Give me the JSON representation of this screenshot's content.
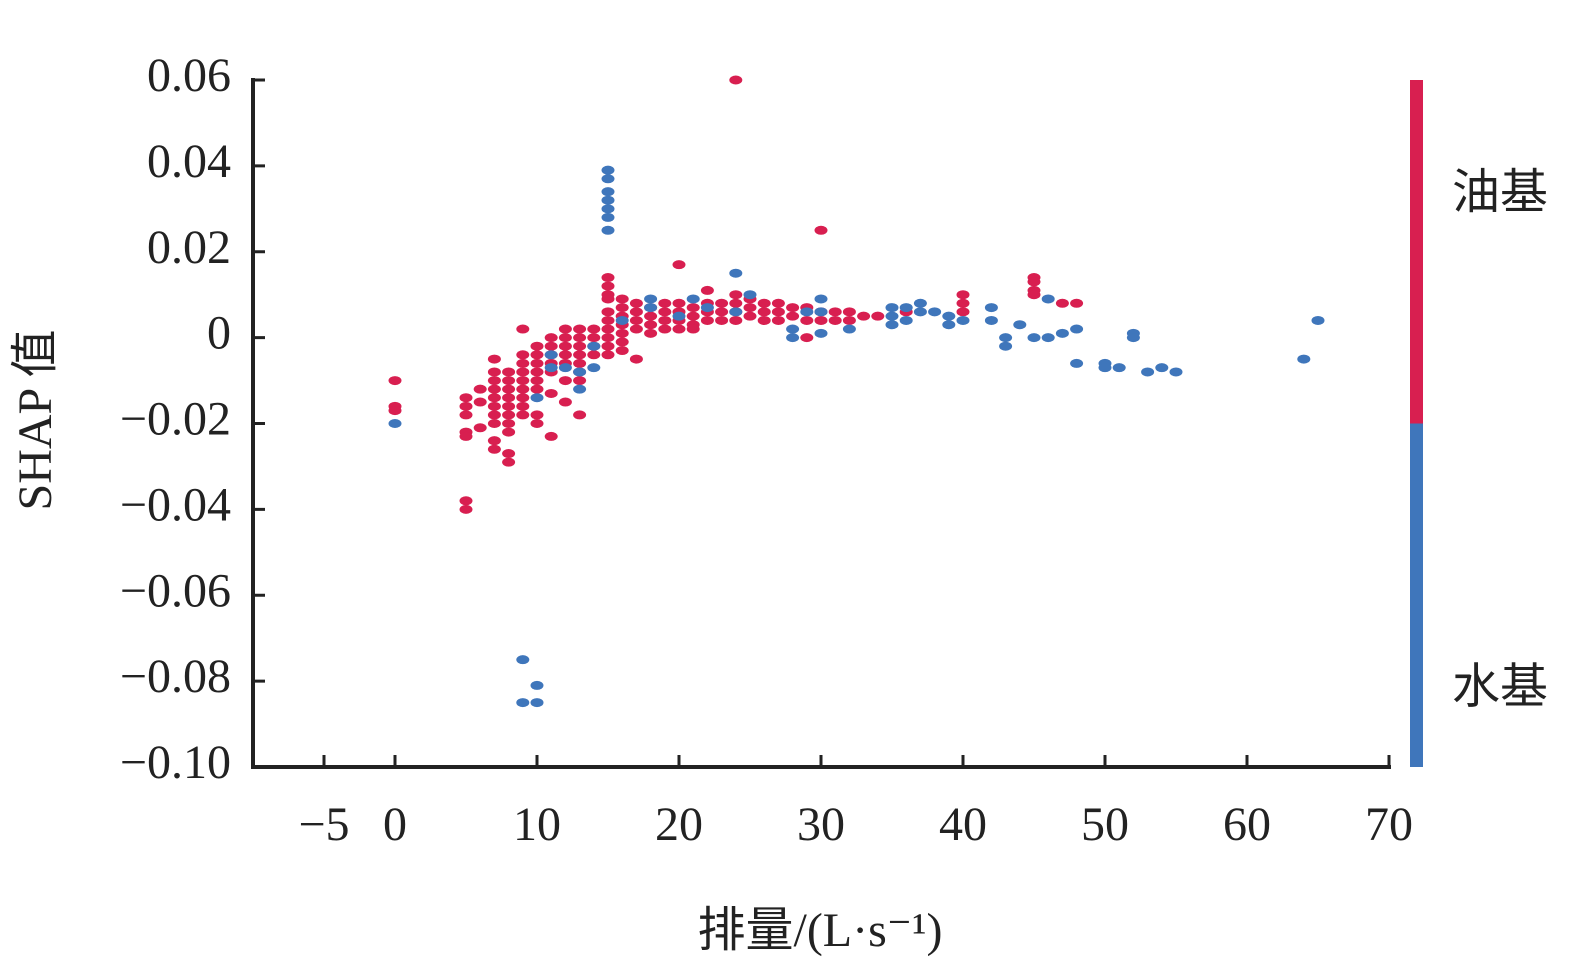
{
  "chart_data": {
    "type": "scatter",
    "x_label": "排量/(L·s⁻¹)",
    "y_label": "SHAP 值",
    "xlim": [
      -10,
      70
    ],
    "xticks": [
      {
        "value": -5,
        "label": "−5"
      },
      0,
      10,
      20,
      30,
      40,
      50,
      60,
      70
    ],
    "ylim": [
      -0.1,
      0.06
    ],
    "yticks": [
      0.06,
      0.04,
      0.02,
      0,
      {
        "value": -0.02,
        "label": "−0.02"
      },
      {
        "value": -0.04,
        "label": "−0.04"
      },
      {
        "value": -0.06,
        "label": "−0.06"
      },
      {
        "value": -0.08,
        "label": "−0.08"
      },
      {
        "value": -0.1,
        "label": "−0.10"
      }
    ],
    "grid": false,
    "legend": "colorbar-right",
    "series": [
      {
        "name": "油基",
        "color": "#d81f50",
        "x": [
          0,
          0,
          0,
          5,
          5,
          5,
          5,
          5,
          5,
          5,
          6,
          6,
          6,
          7,
          7,
          7,
          7,
          7,
          7,
          7,
          7,
          7,
          7,
          8,
          8,
          8,
          8,
          8,
          8,
          8,
          8,
          8,
          8,
          9,
          9,
          9,
          9,
          9,
          9,
          9,
          9,
          9,
          10,
          10,
          10,
          10,
          10,
          10,
          10,
          10,
          11,
          11,
          11,
          11,
          11,
          11,
          11,
          12,
          12,
          12,
          12,
          12,
          12,
          12,
          13,
          13,
          13,
          13,
          13,
          13,
          13,
          13,
          14,
          14,
          14,
          14,
          15,
          15,
          15,
          15,
          15,
          15,
          15,
          15,
          15,
          15,
          16,
          16,
          16,
          16,
          16,
          16,
          16,
          17,
          17,
          17,
          17,
          17,
          18,
          18,
          18,
          18,
          19,
          19,
          19,
          19,
          20,
          20,
          20,
          20,
          20,
          21,
          21,
          21,
          21,
          22,
          22,
          22,
          22,
          23,
          23,
          23,
          24,
          24,
          24,
          24,
          24,
          25,
          25,
          25,
          26,
          26,
          26,
          27,
          27,
          27,
          28,
          28,
          29,
          29,
          29,
          30,
          30,
          30,
          31,
          31,
          32,
          32,
          33,
          34,
          36,
          40,
          40,
          40,
          45,
          45,
          45,
          45,
          47,
          48
        ],
        "values": [
          -0.01,
          -0.016,
          -0.017,
          -0.014,
          -0.016,
          -0.018,
          -0.022,
          -0.023,
          -0.038,
          -0.04,
          -0.012,
          -0.015,
          -0.021,
          -0.005,
          -0.008,
          -0.01,
          -0.012,
          -0.014,
          -0.016,
          -0.018,
          -0.02,
          -0.024,
          -0.026,
          -0.008,
          -0.01,
          -0.012,
          -0.014,
          -0.016,
          -0.018,
          -0.02,
          -0.022,
          -0.027,
          -0.029,
          0.002,
          -0.004,
          -0.006,
          -0.008,
          -0.01,
          -0.012,
          -0.014,
          -0.016,
          -0.018,
          -0.002,
          -0.004,
          -0.006,
          -0.008,
          -0.01,
          -0.012,
          -0.018,
          -0.02,
          0,
          -0.002,
          -0.004,
          -0.006,
          -0.008,
          -0.013,
          -0.023,
          0.002,
          0,
          -0.002,
          -0.004,
          -0.006,
          -0.01,
          -0.015,
          0.002,
          0,
          -0.002,
          -0.004,
          -0.006,
          -0.008,
          -0.01,
          -0.018,
          0.002,
          0,
          -0.002,
          -0.004,
          0.014,
          0.012,
          0.01,
          0.009,
          0.006,
          0.004,
          0.002,
          0,
          -0.002,
          -0.004,
          0.009,
          0.007,
          0.005,
          0.003,
          0.001,
          -0.001,
          -0.003,
          0.008,
          0.006,
          0.004,
          0.002,
          -0.005,
          0.007,
          0.005,
          0.003,
          0.001,
          0.008,
          0.006,
          0.004,
          0.002,
          0.017,
          0.008,
          0.006,
          0.004,
          0.002,
          0.007,
          0.005,
          0.003,
          0.002,
          0.011,
          0.008,
          0.006,
          0.004,
          0.008,
          0.006,
          0.004,
          0.06,
          0.01,
          0.008,
          0.006,
          0.004,
          0.009,
          0.007,
          0.005,
          0.008,
          0.006,
          0.004,
          0.008,
          0.006,
          0.004,
          0.007,
          0.005,
          0.007,
          0.004,
          0,
          0.025,
          0.006,
          0.004,
          0.006,
          0.004,
          0.006,
          0.004,
          0.005,
          0.005,
          0.006,
          0.01,
          0.008,
          0.006,
          0.014,
          0.013,
          0.011,
          0.01,
          0.008,
          0.008
        ]
      },
      {
        "name": "水基",
        "color": "#3f76bb",
        "x": [
          0,
          9,
          9,
          10,
          10,
          10,
          11,
          11,
          12,
          13,
          13,
          14,
          14,
          15,
          15,
          15,
          15,
          15,
          15,
          15,
          16,
          18,
          18,
          20,
          21,
          22,
          24,
          24,
          25,
          28,
          28,
          29,
          30,
          30,
          30,
          32,
          35,
          35,
          35,
          36,
          36,
          37,
          37,
          38,
          39,
          39,
          40,
          42,
          42,
          43,
          43,
          44,
          45,
          46,
          46,
          47,
          48,
          48,
          50,
          50,
          51,
          52,
          52,
          53,
          54,
          55,
          64,
          65
        ],
        "values": [
          -0.02,
          -0.075,
          -0.085,
          -0.081,
          -0.085,
          -0.014,
          -0.007,
          -0.004,
          -0.007,
          -0.012,
          -0.008,
          -0.002,
          -0.007,
          0.039,
          0.037,
          0.034,
          0.032,
          0.03,
          0.028,
          0.025,
          0.004,
          0.009,
          0.007,
          0.005,
          0.009,
          0.007,
          0.015,
          0.006,
          0.01,
          0.002,
          0,
          0.006,
          0.009,
          0.001,
          0.006,
          0.002,
          0.007,
          0.005,
          0.003,
          0.007,
          0.004,
          0.008,
          0.006,
          0.006,
          0.005,
          0.003,
          0.004,
          0.007,
          0.004,
          0,
          -0.002,
          0.003,
          0,
          0.009,
          0,
          0.001,
          0.002,
          -0.006,
          -0.006,
          -0.007,
          -0.007,
          0.001,
          0,
          -0.008,
          -0.007,
          -0.008,
          -0.005,
          0.004
        ]
      }
    ]
  }
}
